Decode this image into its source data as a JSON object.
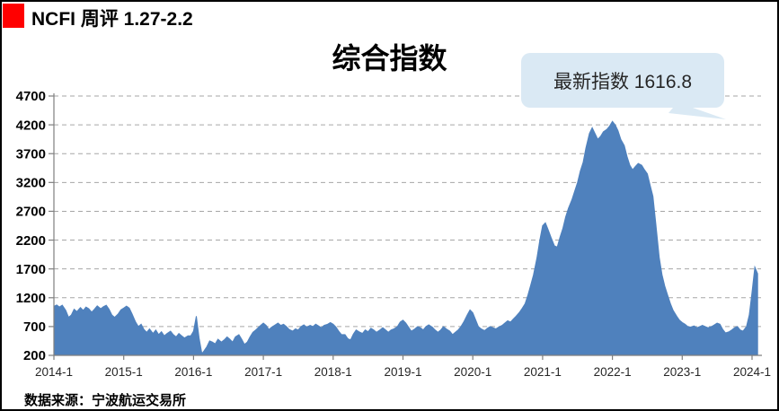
{
  "header": {
    "title": "NCFI 周评 1.27-2.2"
  },
  "source": {
    "text": "数据来源：宁波航运交易所"
  },
  "colors": {
    "area": "#4F81BD",
    "grid": "#A6A6A6",
    "axis": "#7F7F7F",
    "callout_bg": "#DAE9F4",
    "logo": "#FF0000",
    "text": "#000000"
  },
  "chart_data": {
    "type": "area",
    "title": "综合指数",
    "series_name": "NCFI综合指数",
    "annotation": {
      "text": "最新指数 1616.8",
      "latest_value": 1616.8
    },
    "x_tick_labels": [
      "2014-1",
      "2015-1",
      "2016-1",
      "2017-1",
      "2018-1",
      "2019-1",
      "2020-1",
      "2021-1",
      "2022-1",
      "2023-1",
      "2024-1"
    ],
    "y_tick_values": [
      200,
      700,
      1200,
      1700,
      2200,
      2700,
      3200,
      3700,
      4200,
      4700
    ],
    "ylim": [
      200,
      4700
    ],
    "xlim": [
      2014.0,
      2024.17
    ],
    "grid": "horizontal-dashed",
    "legend_position": "none",
    "points": [
      [
        2014.0,
        1050
      ],
      [
        2014.04,
        1075
      ],
      [
        2014.08,
        1040
      ],
      [
        2014.12,
        1070
      ],
      [
        2014.17,
        980
      ],
      [
        2014.21,
        860
      ],
      [
        2014.25,
        900
      ],
      [
        2014.29,
        1000
      ],
      [
        2014.33,
        960
      ],
      [
        2014.38,
        1030
      ],
      [
        2014.42,
        980
      ],
      [
        2014.46,
        1040
      ],
      [
        2014.5,
        1010
      ],
      [
        2014.54,
        950
      ],
      [
        2014.58,
        1000
      ],
      [
        2014.62,
        1060
      ],
      [
        2014.67,
        1010
      ],
      [
        2014.71,
        1045
      ],
      [
        2014.75,
        1070
      ],
      [
        2014.79,
        1000
      ],
      [
        2014.83,
        900
      ],
      [
        2014.87,
        860
      ],
      [
        2014.92,
        920
      ],
      [
        2014.96,
        990
      ],
      [
        2015.0,
        1020
      ],
      [
        2015.04,
        1055
      ],
      [
        2015.08,
        1020
      ],
      [
        2015.12,
        920
      ],
      [
        2015.17,
        780
      ],
      [
        2015.21,
        700
      ],
      [
        2015.25,
        740
      ],
      [
        2015.29,
        650
      ],
      [
        2015.33,
        600
      ],
      [
        2015.37,
        660
      ],
      [
        2015.42,
        580
      ],
      [
        2015.46,
        640
      ],
      [
        2015.5,
        560
      ],
      [
        2015.54,
        610
      ],
      [
        2015.58,
        540
      ],
      [
        2015.62,
        580
      ],
      [
        2015.67,
        620
      ],
      [
        2015.71,
        560
      ],
      [
        2015.75,
        520
      ],
      [
        2015.79,
        580
      ],
      [
        2015.83,
        540
      ],
      [
        2015.87,
        500
      ],
      [
        2015.92,
        540
      ],
      [
        2015.96,
        540
      ],
      [
        2016.0,
        620
      ],
      [
        2016.04,
        880
      ],
      [
        2016.08,
        500
      ],
      [
        2016.12,
        230
      ],
      [
        2016.15,
        280
      ],
      [
        2016.19,
        350
      ],
      [
        2016.23,
        450
      ],
      [
        2016.27,
        430
      ],
      [
        2016.31,
        400
      ],
      [
        2016.35,
        480
      ],
      [
        2016.4,
        430
      ],
      [
        2016.44,
        470
      ],
      [
        2016.48,
        520
      ],
      [
        2016.52,
        480
      ],
      [
        2016.56,
        430
      ],
      [
        2016.6,
        520
      ],
      [
        2016.65,
        560
      ],
      [
        2016.69,
        480
      ],
      [
        2016.73,
        390
      ],
      [
        2016.77,
        430
      ],
      [
        2016.81,
        520
      ],
      [
        2016.85,
        600
      ],
      [
        2016.9,
        650
      ],
      [
        2016.96,
        720
      ],
      [
        2017.0,
        760
      ],
      [
        2017.04,
        720
      ],
      [
        2017.08,
        650
      ],
      [
        2017.12,
        690
      ],
      [
        2017.17,
        730
      ],
      [
        2017.21,
        760
      ],
      [
        2017.25,
        720
      ],
      [
        2017.29,
        740
      ],
      [
        2017.33,
        700
      ],
      [
        2017.37,
        650
      ],
      [
        2017.42,
        620
      ],
      [
        2017.46,
        660
      ],
      [
        2017.5,
        640
      ],
      [
        2017.54,
        700
      ],
      [
        2017.58,
        730
      ],
      [
        2017.62,
        690
      ],
      [
        2017.67,
        720
      ],
      [
        2017.71,
        700
      ],
      [
        2017.75,
        740
      ],
      [
        2017.79,
        710
      ],
      [
        2017.83,
        680
      ],
      [
        2017.87,
        720
      ],
      [
        2017.92,
        740
      ],
      [
        2017.96,
        770
      ],
      [
        2018.0,
        740
      ],
      [
        2018.04,
        690
      ],
      [
        2018.08,
        620
      ],
      [
        2018.12,
        560
      ],
      [
        2018.17,
        560
      ],
      [
        2018.21,
        490
      ],
      [
        2018.25,
        470
      ],
      [
        2018.29,
        570
      ],
      [
        2018.33,
        640
      ],
      [
        2018.37,
        610
      ],
      [
        2018.42,
        580
      ],
      [
        2018.46,
        640
      ],
      [
        2018.5,
        610
      ],
      [
        2018.54,
        670
      ],
      [
        2018.58,
        640
      ],
      [
        2018.62,
        600
      ],
      [
        2018.67,
        640
      ],
      [
        2018.71,
        680
      ],
      [
        2018.75,
        640
      ],
      [
        2018.79,
        600
      ],
      [
        2018.83,
        640
      ],
      [
        2018.87,
        660
      ],
      [
        2018.92,
        700
      ],
      [
        2018.96,
        780
      ],
      [
        2019.0,
        810
      ],
      [
        2019.04,
        760
      ],
      [
        2019.08,
        690
      ],
      [
        2019.12,
        620
      ],
      [
        2019.17,
        660
      ],
      [
        2019.21,
        700
      ],
      [
        2019.25,
        680
      ],
      [
        2019.29,
        640
      ],
      [
        2019.33,
        700
      ],
      [
        2019.37,
        730
      ],
      [
        2019.42,
        690
      ],
      [
        2019.46,
        640
      ],
      [
        2019.5,
        600
      ],
      [
        2019.54,
        640
      ],
      [
        2019.58,
        700
      ],
      [
        2019.62,
        660
      ],
      [
        2019.67,
        620
      ],
      [
        2019.71,
        560
      ],
      [
        2019.75,
        600
      ],
      [
        2019.79,
        640
      ],
      [
        2019.83,
        700
      ],
      [
        2019.87,
        780
      ],
      [
        2019.92,
        900
      ],
      [
        2019.96,
        990
      ],
      [
        2020.0,
        940
      ],
      [
        2020.04,
        820
      ],
      [
        2020.08,
        700
      ],
      [
        2020.12,
        660
      ],
      [
        2020.17,
        630
      ],
      [
        2020.21,
        670
      ],
      [
        2020.25,
        700
      ],
      [
        2020.29,
        680
      ],
      [
        2020.33,
        660
      ],
      [
        2020.37,
        690
      ],
      [
        2020.42,
        720
      ],
      [
        2020.46,
        760
      ],
      [
        2020.5,
        800
      ],
      [
        2020.54,
        780
      ],
      [
        2020.58,
        830
      ],
      [
        2020.62,
        880
      ],
      [
        2020.67,
        950
      ],
      [
        2020.71,
        1020
      ],
      [
        2020.75,
        1100
      ],
      [
        2020.79,
        1250
      ],
      [
        2020.83,
        1420
      ],
      [
        2020.87,
        1600
      ],
      [
        2020.92,
        1900
      ],
      [
        2020.96,
        2200
      ],
      [
        2021.0,
        2450
      ],
      [
        2021.04,
        2500
      ],
      [
        2021.08,
        2380
      ],
      [
        2021.12,
        2250
      ],
      [
        2021.17,
        2100
      ],
      [
        2021.21,
        2080
      ],
      [
        2021.25,
        2250
      ],
      [
        2021.29,
        2400
      ],
      [
        2021.33,
        2600
      ],
      [
        2021.37,
        2750
      ],
      [
        2021.42,
        2900
      ],
      [
        2021.46,
        3050
      ],
      [
        2021.5,
        3200
      ],
      [
        2021.54,
        3400
      ],
      [
        2021.58,
        3550
      ],
      [
        2021.62,
        3800
      ],
      [
        2021.67,
        4050
      ],
      [
        2021.71,
        4150
      ],
      [
        2021.75,
        4050
      ],
      [
        2021.79,
        3950
      ],
      [
        2021.83,
        4000
      ],
      [
        2021.87,
        4080
      ],
      [
        2021.92,
        4120
      ],
      [
        2021.96,
        4180
      ],
      [
        2022.0,
        4260
      ],
      [
        2022.04,
        4200
      ],
      [
        2022.08,
        4100
      ],
      [
        2022.12,
        3950
      ],
      [
        2022.17,
        3840
      ],
      [
        2022.21,
        3650
      ],
      [
        2022.25,
        3500
      ],
      [
        2022.29,
        3420
      ],
      [
        2022.33,
        3480
      ],
      [
        2022.37,
        3530
      ],
      [
        2022.42,
        3500
      ],
      [
        2022.46,
        3420
      ],
      [
        2022.5,
        3350
      ],
      [
        2022.54,
        3150
      ],
      [
        2022.58,
        2960
      ],
      [
        2022.62,
        2500
      ],
      [
        2022.67,
        1900
      ],
      [
        2022.71,
        1600
      ],
      [
        2022.75,
        1400
      ],
      [
        2022.79,
        1250
      ],
      [
        2022.83,
        1100
      ],
      [
        2022.87,
        980
      ],
      [
        2022.92,
        880
      ],
      [
        2022.96,
        810
      ],
      [
        2023.0,
        770
      ],
      [
        2023.04,
        740
      ],
      [
        2023.08,
        700
      ],
      [
        2023.12,
        690
      ],
      [
        2023.17,
        710
      ],
      [
        2023.21,
        680
      ],
      [
        2023.25,
        700
      ],
      [
        2023.29,
        720
      ],
      [
        2023.33,
        700
      ],
      [
        2023.37,
        680
      ],
      [
        2023.42,
        700
      ],
      [
        2023.46,
        730
      ],
      [
        2023.5,
        760
      ],
      [
        2023.54,
        740
      ],
      [
        2023.58,
        650
      ],
      [
        2023.62,
        590
      ],
      [
        2023.67,
        610
      ],
      [
        2023.71,
        640
      ],
      [
        2023.75,
        680
      ],
      [
        2023.79,
        700
      ],
      [
        2023.83,
        640
      ],
      [
        2023.87,
        620
      ],
      [
        2023.92,
        700
      ],
      [
        2023.96,
        900
      ],
      [
        2024.0,
        1300
      ],
      [
        2024.04,
        1732
      ],
      [
        2024.08,
        1616.8
      ]
    ]
  }
}
